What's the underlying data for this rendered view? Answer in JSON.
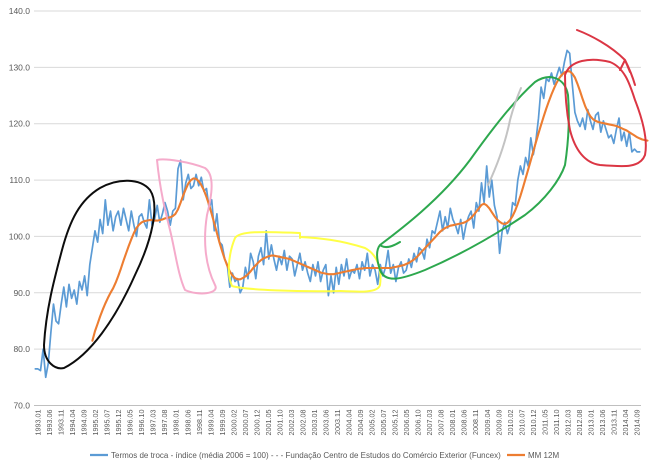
{
  "chart_data": {
    "type": "line",
    "title": "",
    "xlabel": "",
    "ylabel": "",
    "ylim": [
      70,
      140
    ],
    "yticks": [
      "70.0",
      "80.0",
      "90.0",
      "100.0",
      "110.0",
      "120.0",
      "130.0",
      "140.0"
    ],
    "grid": "horizontal",
    "legend_position": "bottom",
    "x_tick_labels": [
      "1993.01",
      "1993.06",
      "1993.11",
      "1994.04",
      "1994.09",
      "1995.02",
      "1995.07",
      "1995.12",
      "1996.05",
      "1996.10",
      "1997.03",
      "1997.08",
      "1998.01",
      "1998.06",
      "1998.11",
      "1999.04",
      "1999.09",
      "2000.02",
      "2000.07",
      "2000.12",
      "2001.05",
      "2001.10",
      "2002.03",
      "2002.08",
      "2003.01",
      "2003.06",
      "2003.11",
      "2004.04",
      "2004.09",
      "2005.02",
      "2005.07",
      "2005.12",
      "2006.05",
      "2006.10",
      "2007.03",
      "2007.08",
      "2008.01",
      "2008.06",
      "2008.11",
      "2009.04",
      "2009.09",
      "2010.02",
      "2010.07",
      "2010.12",
      "2011.05",
      "2011.10",
      "2012.03",
      "2012.08",
      "2013.01",
      "2013.06",
      "2013.11",
      "2014.04",
      "2014.09"
    ],
    "series": [
      {
        "name": "Termos de troca - índice (média 2006 = 100) - - - Fundação Centro de Estudos do Comércio Exterior (Funcex)",
        "color": "#5b9bd5",
        "values": [
          76.5,
          76.5,
          76.2,
          80.0,
          75.0,
          77.5,
          83.0,
          88.0,
          85.0,
          84.5,
          88.0,
          91.0,
          87.5,
          91.5,
          89.0,
          90.5,
          88.0,
          92.0,
          90.5,
          93.0,
          89.5,
          95.0,
          98.0,
          101.0,
          99.0,
          103.0,
          100.5,
          106.5,
          102.0,
          104.5,
          101.0,
          103.5,
          104.5,
          102.0,
          105.0,
          103.0,
          101.0,
          104.5,
          102.0,
          100.0,
          103.5,
          104.0,
          102.5,
          101.5,
          106.5,
          102.0,
          103.0,
          105.5,
          102.5,
          104.0,
          106.0,
          104.5,
          102.0,
          104.5,
          105.0,
          112.0,
          113.5,
          106.5,
          109.5,
          111.0,
          108.5,
          109.0,
          111.0,
          109.0,
          110.5,
          108.0,
          108.5,
          105.0,
          106.5,
          101.0,
          104.0,
          99.0,
          98.5,
          96.0,
          95.0,
          91.0,
          93.5,
          92.0,
          92.5,
          90.0,
          91.0,
          94.5,
          92.5,
          97.0,
          95.5,
          92.5,
          96.5,
          98.0,
          95.0,
          101.0,
          96.0,
          98.5,
          96.0,
          94.0,
          96.5,
          95.0,
          97.5,
          94.0,
          96.5,
          96.0,
          93.0,
          95.0,
          97.0,
          94.0,
          95.5,
          93.5,
          92.0,
          95.0,
          93.0,
          95.5,
          92.0,
          94.0,
          95.0,
          89.5,
          93.0,
          90.0,
          94.5,
          91.5,
          95.0,
          93.0,
          96.0,
          92.5,
          94.0,
          93.5,
          95.0,
          92.5,
          95.5,
          94.0,
          97.0,
          93.0,
          95.0,
          94.0,
          91.5,
          95.0,
          93.0,
          94.5,
          97.5,
          93.5,
          95.0,
          92.0,
          94.5,
          95.5,
          93.5,
          94.0,
          96.0,
          94.5,
          97.0,
          95.5,
          98.0,
          97.5,
          96.0,
          99.5,
          98.0,
          101.0,
          100.5,
          102.5,
          104.5,
          101.0,
          103.5,
          101.5,
          105.0,
          103.0,
          102.0,
          100.5,
          103.0,
          99.5,
          102.0,
          103.5,
          104.5,
          101.5,
          106.0,
          104.5,
          109.5,
          106.0,
          112.5,
          107.0,
          110.0,
          105.5,
          103.5,
          97.0,
          101.0,
          102.5,
          100.5,
          102.0,
          106.0,
          105.5,
          110.0,
          112.5,
          111.0,
          114.0,
          112.5,
          117.5,
          114.5,
          117.0,
          121.0,
          126.5,
          124.5,
          128.0,
          127.5,
          129.0,
          127.0,
          128.5,
          130.0,
          128.5,
          131.0,
          133.0,
          132.5,
          127.0,
          122.0,
          120.5,
          119.5,
          121.0,
          119.0,
          122.5,
          120.5,
          119.0,
          121.5,
          122.0,
          118.5,
          120.5,
          119.0,
          117.5,
          118.0,
          116.5,
          119.0,
          121.0,
          117.0,
          118.5,
          116.0,
          118.5,
          115.0,
          115.5,
          115.0,
          115.0
        ],
        "smooth": false
      },
      {
        "name": "MM 12M",
        "color": "#ed7d31",
        "values": [
          null,
          null,
          null,
          null,
          null,
          null,
          null,
          null,
          null,
          null,
          null,
          null,
          null,
          null,
          null,
          null,
          null,
          null,
          null,
          null,
          null,
          null,
          81.5,
          83.2,
          84.5,
          85.8,
          87.0,
          88.1,
          89.1,
          90.0,
          90.8,
          91.8,
          93.0,
          94.3,
          95.7,
          97.0,
          98.3,
          99.5,
          100.6,
          101.5,
          102.1,
          102.5,
          102.7,
          102.8,
          102.9,
          102.9,
          102.8,
          102.8,
          102.9,
          103.0,
          103.2,
          103.3,
          103.4,
          103.6,
          104.0,
          104.8,
          106.0,
          107.3,
          108.4,
          109.4,
          110.0,
          110.3,
          110.2,
          109.8,
          109.1,
          108.2,
          107.0,
          105.6,
          104.0,
          102.3,
          100.6,
          98.9,
          97.4,
          96.0,
          94.8,
          93.8,
          93.1,
          92.6,
          92.4,
          92.4,
          92.6,
          92.9,
          93.3,
          93.8,
          94.4,
          94.9,
          95.4,
          95.8,
          96.1,
          96.3,
          96.5,
          96.6,
          96.6,
          96.5,
          96.4,
          96.3,
          96.2,
          96.1,
          96.0,
          95.8,
          95.6,
          95.4,
          95.2,
          95.0,
          94.8,
          94.6,
          94.4,
          94.2,
          94.0,
          93.8,
          93.6,
          93.5,
          93.4,
          93.3,
          93.3,
          93.3,
          93.4,
          93.5,
          93.6,
          93.7,
          93.8,
          93.9,
          94.0,
          94.1,
          94.2,
          94.3,
          94.3,
          94.4,
          94.4,
          94.4,
          94.4,
          94.4,
          94.4,
          94.4,
          94.4,
          94.4,
          94.4,
          94.4,
          94.5,
          94.6,
          94.7,
          94.8,
          94.9,
          95.1,
          95.3,
          95.6,
          95.9,
          96.3,
          96.8,
          97.3,
          97.8,
          98.3,
          98.8,
          99.3,
          99.8,
          100.3,
          100.8,
          101.2,
          101.5,
          101.7,
          101.9,
          102.0,
          102.1,
          102.2,
          102.3,
          102.4,
          102.6,
          102.9,
          103.3,
          103.8,
          104.4,
          105.0,
          105.6,
          105.8,
          105.5,
          105.0,
          104.3,
          103.6,
          103.0,
          102.6,
          102.3,
          102.2,
          102.4,
          102.9,
          103.6,
          104.6,
          105.8,
          107.2,
          108.7,
          110.3,
          111.9,
          113.5,
          115.1,
          116.7,
          118.3,
          119.8,
          121.3,
          122.7,
          124.0,
          125.2,
          126.3,
          127.3,
          128.1,
          128.7,
          129.1,
          129.3,
          129.3,
          128.9,
          128.2,
          127.1,
          125.8,
          124.4,
          123.1,
          122.1,
          121.3,
          120.8,
          120.5,
          120.3,
          120.2,
          120.1,
          120.0,
          119.9,
          119.8,
          119.7,
          119.6,
          119.4,
          119.2,
          119.0,
          118.8,
          118.5,
          118.2,
          117.9,
          117.6,
          117.4,
          117.2,
          117.1,
          117.0
        ],
        "smooth": true
      }
    ],
    "annotations": [
      {
        "color": "#000000"
      },
      {
        "color": "#f4a6c8"
      },
      {
        "color": "#ffff3c"
      },
      {
        "color": "#22a344"
      },
      {
        "color": "#c0c0c0"
      },
      {
        "color": "#d92b3a"
      }
    ]
  }
}
